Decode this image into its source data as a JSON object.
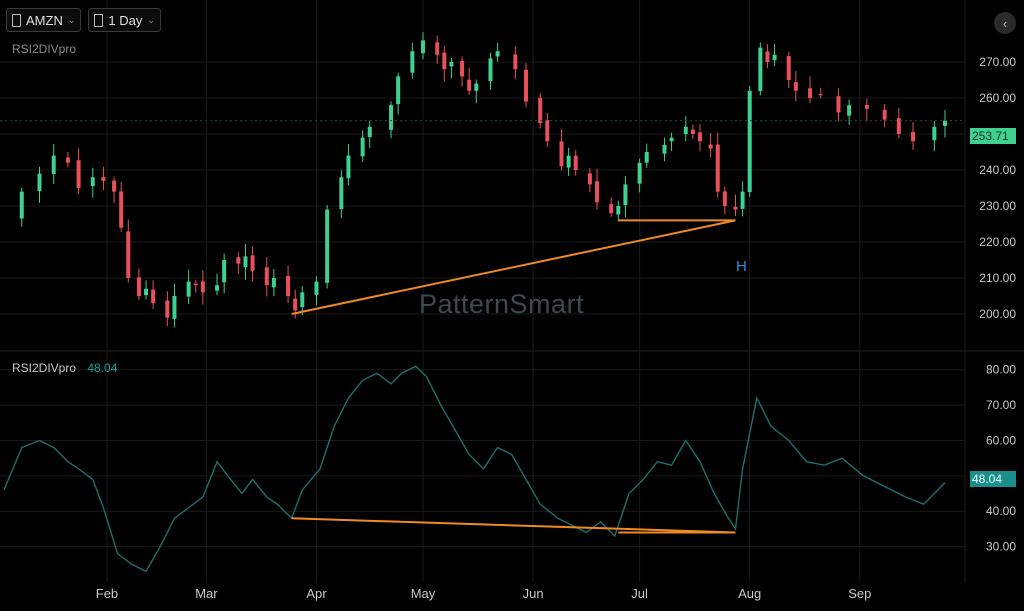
{
  "toolbar": {
    "symbol": "AMZN",
    "interval": "1 Day"
  },
  "upper_pane_label": "RSI2DIVpro",
  "lower_pane": {
    "label": "RSI2DIVpro",
    "value": "48.04"
  },
  "watermark": "PatternSmart",
  "signal_label": "H",
  "price_tag": "253.71",
  "rsi_tag": "48.04",
  "colors": {
    "up": "#3fd191",
    "down": "#e8505b",
    "rsi_line": "#1f6f6b",
    "divergence": "#f08a24",
    "grid": "#1a1a1a"
  },
  "chart_data": [
    {
      "type": "candlestick",
      "title": "AMZN",
      "ylim": [
        190,
        285
      ],
      "yticks": [
        200,
        210,
        220,
        230,
        240,
        250,
        260,
        270
      ],
      "ytick_labels": [
        "200.00",
        "210.00",
        "220.00",
        "230.00",
        "240.00",
        "250.00",
        "260.00",
        "270.00"
      ],
      "x_tick_labels": [
        "Feb",
        "Mar",
        "Apr",
        "May",
        "Jun",
        "Jul",
        "Aug",
        "Sep"
      ],
      "x_tick_dates": [
        "2025-02-01",
        "2025-03-01",
        "2025-04-01",
        "2025-05-01",
        "2025-06-01",
        "2025-07-01",
        "2025-08-01",
        "2025-09-01"
      ],
      "x_range": [
        "2025-01-03",
        "2025-09-25"
      ],
      "close_series": [
        [
          "2025-01-03",
          226
        ],
        [
          "2025-01-08",
          234
        ],
        [
          "2025-01-13",
          239
        ],
        [
          "2025-01-17",
          244
        ],
        [
          "2025-01-21",
          242
        ],
        [
          "2025-01-24",
          235
        ],
        [
          "2025-01-28",
          238
        ],
        [
          "2025-01-31",
          237
        ],
        [
          "2025-02-03",
          234
        ],
        [
          "2025-02-05",
          224
        ],
        [
          "2025-02-07",
          210
        ],
        [
          "2025-02-10",
          205
        ],
        [
          "2025-02-12",
          207
        ],
        [
          "2025-02-14",
          203
        ],
        [
          "2025-02-18",
          199
        ],
        [
          "2025-02-20",
          205
        ],
        [
          "2025-02-24",
          209
        ],
        [
          "2025-02-26",
          208
        ],
        [
          "2025-02-28",
          206
        ],
        [
          "2025-03-04",
          208
        ],
        [
          "2025-03-06",
          215
        ],
        [
          "2025-03-10",
          214
        ],
        [
          "2025-03-12",
          216
        ],
        [
          "2025-03-14",
          212
        ],
        [
          "2025-03-18",
          208
        ],
        [
          "2025-03-20",
          210
        ],
        [
          "2025-03-24",
          205
        ],
        [
          "2025-03-26",
          201
        ],
        [
          "2025-03-28",
          206
        ],
        [
          "2025-04-01",
          209
        ],
        [
          "2025-04-04",
          229
        ],
        [
          "2025-04-08",
          238
        ],
        [
          "2025-04-10",
          244
        ],
        [
          "2025-04-14",
          249
        ],
        [
          "2025-04-16",
          252
        ],
        [
          "2025-04-22",
          258
        ],
        [
          "2025-04-24",
          266
        ],
        [
          "2025-04-28",
          273
        ],
        [
          "2025-05-01",
          276
        ],
        [
          "2025-05-05",
          272
        ],
        [
          "2025-05-07",
          268
        ],
        [
          "2025-05-09",
          270
        ],
        [
          "2025-05-12",
          266
        ],
        [
          "2025-05-14",
          262
        ],
        [
          "2025-05-16",
          264
        ],
        [
          "2025-05-20",
          271
        ],
        [
          "2025-05-22",
          273
        ],
        [
          "2025-05-27",
          268
        ],
        [
          "2025-05-30",
          259
        ],
        [
          "2025-06-03",
          253
        ],
        [
          "2025-06-05",
          248
        ],
        [
          "2025-06-09",
          241
        ],
        [
          "2025-06-11",
          244
        ],
        [
          "2025-06-13",
          240
        ],
        [
          "2025-06-17",
          236
        ],
        [
          "2025-06-19",
          231
        ],
        [
          "2025-06-23",
          228
        ],
        [
          "2025-06-25",
          230
        ],
        [
          "2025-06-27",
          236
        ],
        [
          "2025-07-01",
          242
        ],
        [
          "2025-07-03",
          245
        ],
        [
          "2025-07-08",
          247
        ],
        [
          "2025-07-10",
          249
        ],
        [
          "2025-07-14",
          252
        ],
        [
          "2025-07-16",
          250
        ],
        [
          "2025-07-18",
          248
        ],
        [
          "2025-07-21",
          246
        ],
        [
          "2025-07-23",
          234
        ],
        [
          "2025-07-25",
          230
        ],
        [
          "2025-07-28",
          229
        ],
        [
          "2025-07-30",
          234
        ],
        [
          "2025-08-01",
          262
        ],
        [
          "2025-08-04",
          274
        ],
        [
          "2025-08-06",
          270
        ],
        [
          "2025-08-08",
          272
        ],
        [
          "2025-08-12",
          265
        ],
        [
          "2025-08-14",
          262
        ],
        [
          "2025-08-18",
          260
        ],
        [
          "2025-08-21",
          261
        ],
        [
          "2025-08-26",
          256
        ],
        [
          "2025-08-29",
          258
        ],
        [
          "2025-09-03",
          257
        ],
        [
          "2025-09-08",
          254
        ],
        [
          "2025-09-12",
          250
        ],
        [
          "2025-09-16",
          248
        ],
        [
          "2025-09-22",
          252
        ],
        [
          "2025-09-25",
          253.71
        ]
      ],
      "divergence_lines": [
        {
          "from": [
            "2025-03-25",
            200
          ],
          "to": [
            "2025-07-28",
            226
          ]
        },
        {
          "from": [
            "2025-06-25",
            226
          ],
          "to": [
            "2025-07-28",
            226
          ]
        }
      ],
      "last_price": 253.71
    },
    {
      "type": "line",
      "title": "RSI2DIVpro",
      "ylim": [
        20,
        85
      ],
      "yticks": [
        30,
        40,
        50,
        60,
        70,
        80
      ],
      "ytick_labels": [
        "30.00",
        "40.00",
        "50.00",
        "60.00",
        "70.00",
        "80.00"
      ],
      "series": [
        {
          "name": "RSI2DIVpro",
          "points": [
            [
              "2025-01-03",
              46
            ],
            [
              "2025-01-08",
              58
            ],
            [
              "2025-01-13",
              60
            ],
            [
              "2025-01-17",
              58
            ],
            [
              "2025-01-21",
              54
            ],
            [
              "2025-01-24",
              52
            ],
            [
              "2025-01-28",
              49
            ],
            [
              "2025-01-31",
              41
            ],
            [
              "2025-02-04",
              28
            ],
            [
              "2025-02-08",
              25
            ],
            [
              "2025-02-12",
              23
            ],
            [
              "2025-02-16",
              30
            ],
            [
              "2025-02-20",
              38
            ],
            [
              "2025-02-24",
              41
            ],
            [
              "2025-02-28",
              44
            ],
            [
              "2025-03-04",
              54
            ],
            [
              "2025-03-07",
              50
            ],
            [
              "2025-03-11",
              45
            ],
            [
              "2025-03-14",
              49
            ],
            [
              "2025-03-18",
              44
            ],
            [
              "2025-03-21",
              42
            ],
            [
              "2025-03-25",
              38
            ],
            [
              "2025-03-28",
              46
            ],
            [
              "2025-04-02",
              52
            ],
            [
              "2025-04-06",
              64
            ],
            [
              "2025-04-10",
              72
            ],
            [
              "2025-04-14",
              77
            ],
            [
              "2025-04-18",
              79
            ],
            [
              "2025-04-22",
              76
            ],
            [
              "2025-04-25",
              79
            ],
            [
              "2025-04-29",
              81
            ],
            [
              "2025-05-02",
              78
            ],
            [
              "2025-05-06",
              70
            ],
            [
              "2025-05-10",
              63
            ],
            [
              "2025-05-14",
              56
            ],
            [
              "2025-05-18",
              52
            ],
            [
              "2025-05-22",
              58
            ],
            [
              "2025-05-26",
              56
            ],
            [
              "2025-05-30",
              49
            ],
            [
              "2025-06-03",
              42
            ],
            [
              "2025-06-08",
              38
            ],
            [
              "2025-06-12",
              36
            ],
            [
              "2025-06-16",
              34
            ],
            [
              "2025-06-20",
              37
            ],
            [
              "2025-06-24",
              33
            ],
            [
              "2025-06-28",
              45
            ],
            [
              "2025-07-02",
              49
            ],
            [
              "2025-07-06",
              54
            ],
            [
              "2025-07-10",
              53
            ],
            [
              "2025-07-14",
              60
            ],
            [
              "2025-07-18",
              54
            ],
            [
              "2025-07-22",
              45
            ],
            [
              "2025-07-26",
              38
            ],
            [
              "2025-07-28",
              35
            ],
            [
              "2025-07-30",
              52
            ],
            [
              "2025-08-03",
              72
            ],
            [
              "2025-08-07",
              64
            ],
            [
              "2025-08-12",
              60
            ],
            [
              "2025-08-17",
              54
            ],
            [
              "2025-08-22",
              53
            ],
            [
              "2025-08-27",
              55
            ],
            [
              "2025-09-02",
              50
            ],
            [
              "2025-09-08",
              47
            ],
            [
              "2025-09-14",
              44
            ],
            [
              "2025-09-19",
              42
            ],
            [
              "2025-09-25",
              48.04
            ]
          ]
        }
      ],
      "divergence_lines": [
        {
          "from": [
            "2025-03-25",
            38
          ],
          "to": [
            "2025-07-28",
            34
          ]
        },
        {
          "from": [
            "2025-06-25",
            34
          ],
          "to": [
            "2025-07-28",
            34
          ]
        }
      ],
      "last_value": 48.04
    }
  ]
}
